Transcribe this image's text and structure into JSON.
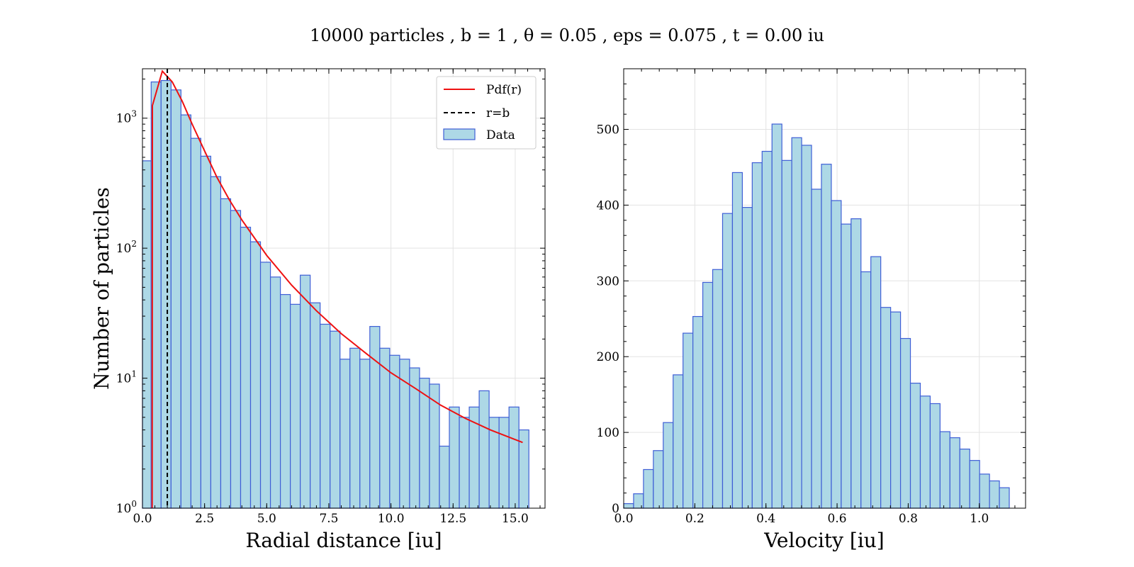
{
  "figure": {
    "title": "10000 particles , b = 1 , θ = 0.05 , eps = 0.075 , t = 0.00 iu"
  },
  "chart_data": [
    {
      "type": "bar",
      "subtype": "histogram",
      "xlabel": "Radial distance [iu]",
      "ylabel": "Number of particles",
      "xlim": [
        0.0,
        16.2
      ],
      "ylim": [
        1,
        2400
      ],
      "yscale": "log",
      "xticks": [
        "0.0",
        "2.5",
        "5.0",
        "7.5",
        "10.0",
        "12.5",
        "15.0"
      ],
      "yticks": [
        "10^0",
        "10^1",
        "10^2",
        "10^3"
      ],
      "grid": true,
      "legend": {
        "placement": "top-right",
        "entries": [
          "Pdf(r)",
          "r=b",
          "Data"
        ]
      },
      "bin_width": 0.4,
      "bin_start": -0.05,
      "series": [
        {
          "name": "Data",
          "kind": "histogram",
          "color": "#add8e6",
          "edgecolor": "#3f5fd6",
          "values": [
            470,
            1900,
            1950,
            1650,
            1060,
            700,
            510,
            355,
            240,
            195,
            145,
            112,
            78,
            60,
            44,
            37,
            62,
            38,
            26,
            23,
            14,
            17,
            14,
            25,
            17,
            15,
            14,
            12,
            10,
            9,
            3,
            6,
            5,
            6,
            8,
            5,
            5,
            6,
            4
          ]
        },
        {
          "name": "Pdf(r)",
          "kind": "line",
          "color": "#ee1111",
          "x": [
            0.39,
            0.4,
            0.8,
            1.2,
            1.6,
            2.0,
            2.5,
            3.0,
            3.5,
            4.0,
            5.0,
            6.0,
            7.0,
            8.0,
            9.0,
            10.0,
            11.0,
            12.0,
            13.0,
            14.0,
            15.3
          ],
          "y": [
            1,
            1250,
            2300,
            1900,
            1350,
            900,
            560,
            350,
            235,
            165,
            88,
            52,
            33,
            22,
            15.5,
            11,
            8.3,
            6.2,
            4.9,
            4.0,
            3.2
          ]
        },
        {
          "name": "r=b",
          "kind": "vline",
          "color": "#000000",
          "x": 1.0
        }
      ]
    },
    {
      "type": "bar",
      "subtype": "histogram",
      "xlabel": "Velocity [iu]",
      "ylabel": "",
      "xlim": [
        0.0,
        1.13
      ],
      "ylim": [
        0,
        580
      ],
      "xticks": [
        "0.0",
        "0.2",
        "0.4",
        "0.6",
        "0.8",
        "1.0"
      ],
      "yticks": [
        "0",
        "100",
        "200",
        "300",
        "400",
        "500"
      ],
      "grid": true,
      "bin_width": 0.0278,
      "bin_start": 0.0,
      "series": [
        {
          "name": "Data",
          "kind": "histogram",
          "color": "#add8e6",
          "edgecolor": "#3f5fd6",
          "values": [
            6,
            19,
            51,
            76,
            113,
            176,
            231,
            253,
            298,
            315,
            389,
            443,
            397,
            456,
            471,
            507,
            459,
            489,
            479,
            421,
            454,
            406,
            375,
            382,
            312,
            332,
            265,
            259,
            224,
            165,
            148,
            138,
            101,
            93,
            78,
            63,
            45,
            36,
            27
          ]
        }
      ]
    }
  ]
}
